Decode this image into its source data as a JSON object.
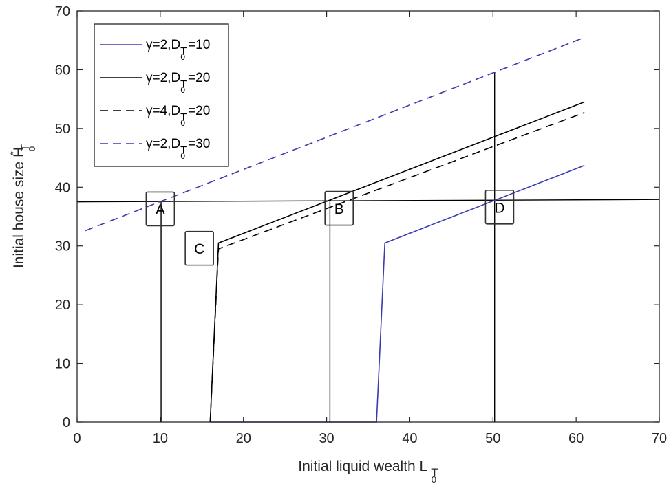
{
  "chart_data": {
    "type": "line",
    "title": "",
    "xlabel": "Initial liquid wealth L",
    "xlabel_subscript": "T",
    "xlabel_subsubscript": "0",
    "ylabel": "Initial house size H",
    "ylabel_superscript": "*",
    "ylabel_subscript": "T",
    "ylabel_subsubscript": "0",
    "xlim": [
      0,
      70
    ],
    "ylim": [
      0,
      70
    ],
    "xticks": [
      0,
      10,
      20,
      30,
      40,
      50,
      60,
      70
    ],
    "yticks": [
      0,
      10,
      20,
      30,
      40,
      50,
      60,
      70
    ],
    "grid": false,
    "legend_position": "upper left",
    "series": [
      {
        "name": "γ=2,D_T0=10",
        "legend": {
          "prefix": "γ=2,D",
          "sub": "T",
          "subsub": "0",
          "suffix": "=10"
        },
        "color": "#3b3bb0",
        "dash": "solid",
        "x": [
          16,
          36,
          37,
          61
        ],
        "y": [
          0,
          0,
          30.5,
          43.7
        ]
      },
      {
        "name": "γ=2,D_T0=20",
        "legend": {
          "prefix": "γ=2,D",
          "sub": "T",
          "subsub": "0",
          "suffix": "=20"
        },
        "color": "#000000",
        "dash": "solid",
        "x": [
          16,
          17,
          61
        ],
        "y": [
          0,
          30.5,
          54.5
        ]
      },
      {
        "name": "γ=4,D_T0=20",
        "legend": {
          "prefix": "γ=4,D",
          "sub": "T",
          "subsub": "0",
          "suffix": "=20"
        },
        "color": "#000000",
        "dash": "dashed",
        "x": [
          16,
          17,
          61
        ],
        "y": [
          0,
          29.5,
          52.7
        ]
      },
      {
        "name": "γ=2,D_T0=30",
        "legend": {
          "prefix": "γ=2,D",
          "sub": "T",
          "subsub": "0",
          "suffix": "=30"
        },
        "color": "#3b3bb0",
        "dash": "dashed",
        "x": [
          1,
          61
        ],
        "y": [
          32.6,
          65.5
        ]
      }
    ],
    "reference_lines": [
      {
        "type": "horizontal",
        "x": [
          0,
          70
        ],
        "y": [
          37.5,
          37.9
        ]
      },
      {
        "type": "vertical",
        "x": [
          10.1,
          10.1
        ],
        "y": [
          0,
          37.5
        ]
      },
      {
        "type": "vertical",
        "x": [
          30.4,
          30.4
        ],
        "y": [
          0,
          37.6
        ]
      },
      {
        "type": "vertical",
        "x": [
          50.2,
          50.2
        ],
        "y": [
          0,
          59.6
        ]
      }
    ],
    "annotations": [
      {
        "label": "A",
        "x": 10,
        "y": 36.3
      },
      {
        "label": "B",
        "x": 31.5,
        "y": 36.4
      },
      {
        "label": "C",
        "x": 14.7,
        "y": 29.6
      },
      {
        "label": "D",
        "x": 50.8,
        "y": 36.6
      }
    ]
  }
}
